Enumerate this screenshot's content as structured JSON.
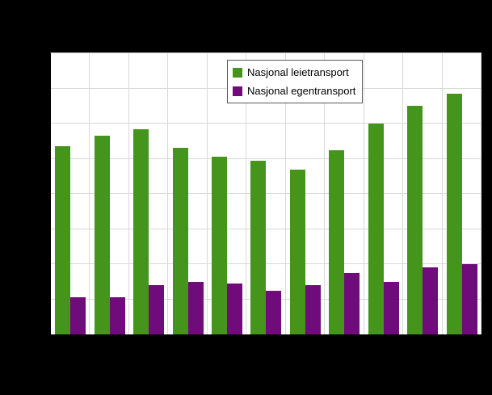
{
  "page": {
    "background_color": "#000000"
  },
  "chart_data": {
    "type": "bar",
    "title": "",
    "xlabel": "",
    "ylabel": "",
    "categories": [
      "",
      "",
      "",
      "",
      "",
      "",
      "",
      "",
      "",
      "",
      ""
    ],
    "series": [
      {
        "name": "Nasjonal leietransport",
        "color": "#45941c",
        "values": [
          10.7,
          11.3,
          11.7,
          10.6,
          10.1,
          9.9,
          9.4,
          10.5,
          12.0,
          13.0,
          13.7
        ]
      },
      {
        "name": "Nasjonal egentransport",
        "color": "#6f0b7a",
        "values": [
          2.1,
          2.1,
          2.8,
          3.0,
          2.9,
          2.5,
          2.8,
          3.5,
          3.0,
          3.8,
          4.0
        ]
      }
    ],
    "ylim": [
      0,
      16
    ],
    "gridline_step": 2,
    "grid": true,
    "legend_position": "top-center",
    "gridline_color": "#d9d9d9",
    "plot_background": "#ffffff"
  }
}
